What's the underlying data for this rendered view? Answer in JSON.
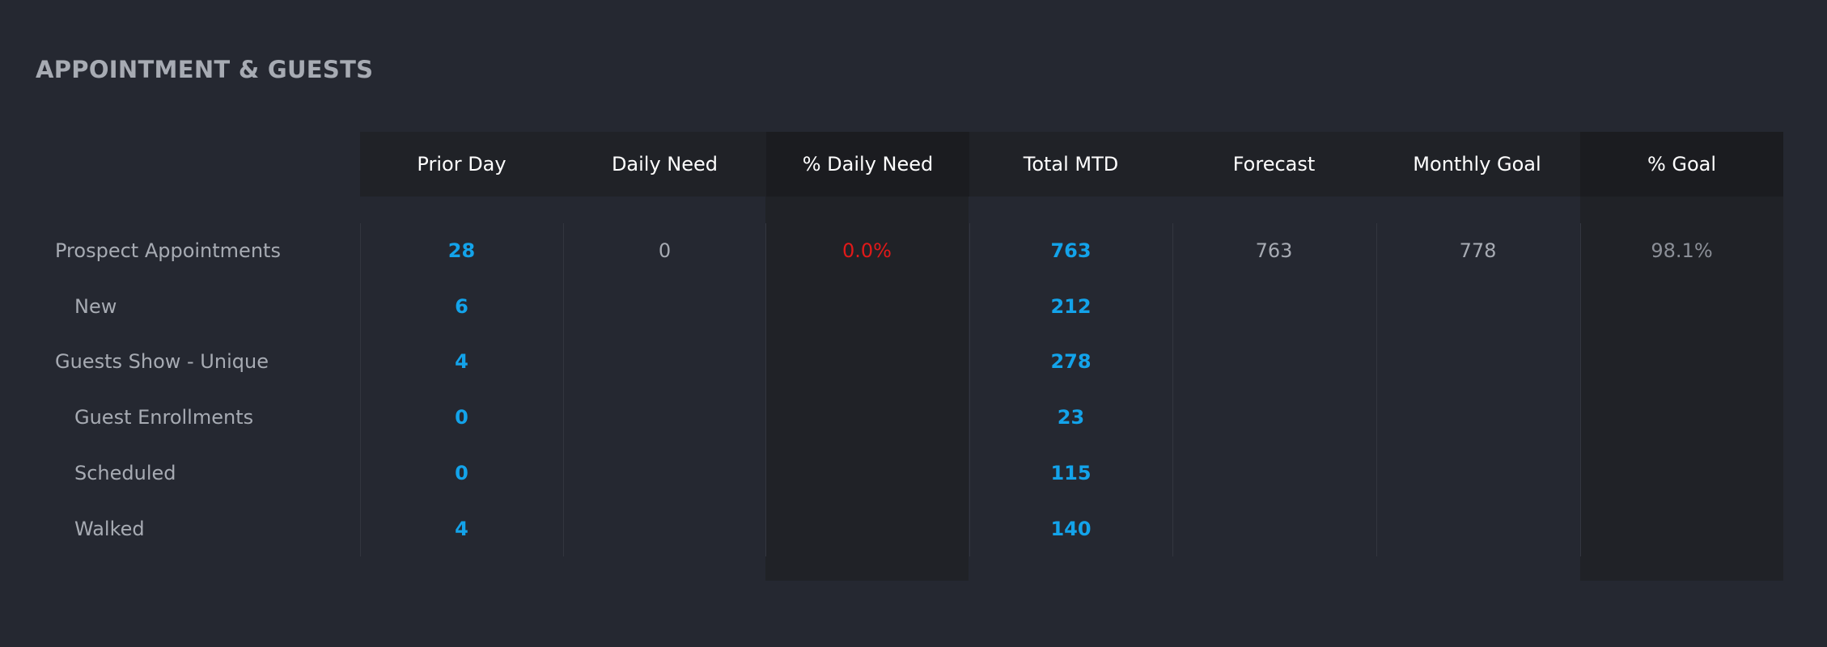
{
  "section": {
    "title": "APPOINTMENT & GUESTS"
  },
  "columns": [
    "Prior Day",
    "Daily Need",
    "% Daily Need",
    "Total MTD",
    "Forecast",
    "Monthly Goal",
    "% Goal"
  ],
  "rows": [
    {
      "label": "Prospect Appointments",
      "prior_day": "28",
      "daily_need": "0",
      "daily_need_pct": "0.0%",
      "total_mtd": "763",
      "forecast": "763",
      "monthly_goal": "778",
      "goal_pct": "98.1%"
    },
    {
      "label": "New",
      "prior_day": "6",
      "total_mtd": "212"
    },
    {
      "label": "Guests Show - Unique",
      "prior_day": "4",
      "total_mtd": "278"
    },
    {
      "label": "Guest Enrollments",
      "prior_day": "0",
      "total_mtd": "23"
    },
    {
      "label": "Scheduled",
      "prior_day": "0",
      "total_mtd": "115"
    },
    {
      "label": "Walked",
      "prior_day": "4",
      "total_mtd": "140"
    }
  ],
  "colors": {
    "background": "#252831",
    "header_bg": "#202227",
    "highlight_col_bg": "#1b1c20",
    "value_blue": "#13a3ea",
    "value_red": "#e11919",
    "label_grey": "#a7abb3"
  }
}
